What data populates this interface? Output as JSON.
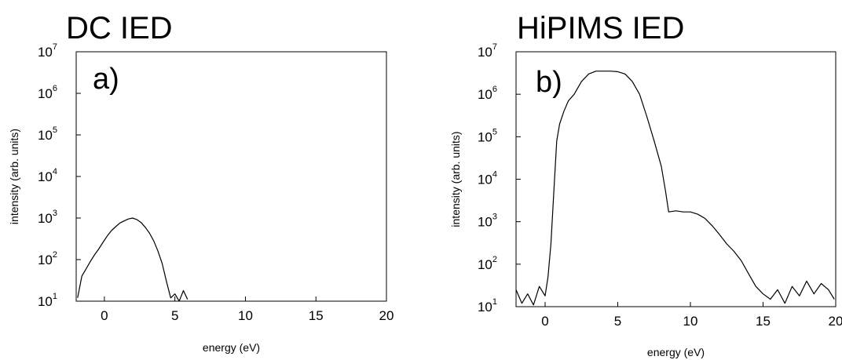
{
  "chart_data": [
    {
      "type": "line",
      "title": "DC IED",
      "panel_label": "a)",
      "xlabel": "energy (eV)",
      "ylabel": "intensity (arb. units)",
      "xlim": [
        -2,
        20
      ],
      "ylim": [
        10,
        10000000
      ],
      "yscale": "log",
      "x_ticks": [
        0,
        5,
        10,
        15,
        20
      ],
      "y_ticks": [
        {
          "base": "10",
          "exp": "1",
          "value": 10
        },
        {
          "base": "10",
          "exp": "2",
          "value": 100
        },
        {
          "base": "10",
          "exp": "3",
          "value": 1000
        },
        {
          "base": "10",
          "exp": "4",
          "value": 10000
        },
        {
          "base": "10",
          "exp": "5",
          "value": 100000
        },
        {
          "base": "10",
          "exp": "6",
          "value": 1000000
        },
        {
          "base": "10",
          "exp": "7",
          "value": 10000000
        }
      ],
      "series": [
        {
          "x": [
            -1.9,
            -1.6,
            -1.3,
            -1.0,
            -0.7,
            -0.4,
            -0.1,
            0.2,
            0.5,
            0.8,
            1.1,
            1.4,
            1.7,
            2.0,
            2.3,
            2.6,
            2.9,
            3.2,
            3.5,
            3.8,
            4.1,
            4.4,
            4.7,
            5.0,
            5.3,
            5.6,
            5.9
          ],
          "y": [
            12,
            40,
            60,
            90,
            130,
            180,
            260,
            370,
            500,
            620,
            760,
            850,
            950,
            1000,
            920,
            780,
            600,
            430,
            280,
            160,
            80,
            30,
            12,
            15,
            10,
            18,
            11
          ]
        }
      ]
    },
    {
      "type": "line",
      "title": "HiPIMS IED",
      "panel_label": "b)",
      "xlabel": "energy (eV)",
      "ylabel": "intensity (arb. units)",
      "xlim": [
        -2,
        20
      ],
      "ylim": [
        10,
        10000000
      ],
      "yscale": "log",
      "x_ticks": [
        0,
        5,
        10,
        15,
        20
      ],
      "y_ticks": [
        {
          "base": "10",
          "exp": "1",
          "value": 10
        },
        {
          "base": "10",
          "exp": "2",
          "value": 100
        },
        {
          "base": "10",
          "exp": "3",
          "value": 1000
        },
        {
          "base": "10",
          "exp": "4",
          "value": 10000
        },
        {
          "base": "10",
          "exp": "5",
          "value": 100000
        },
        {
          "base": "10",
          "exp": "6",
          "value": 1000000
        },
        {
          "base": "10",
          "exp": "7",
          "value": 10000000
        }
      ],
      "series": [
        {
          "x": [
            -2.0,
            -1.6,
            -1.2,
            -0.8,
            -0.4,
            0.0,
            0.2,
            0.4,
            0.6,
            0.8,
            1.0,
            1.3,
            1.6,
            2.0,
            2.5,
            3.0,
            3.5,
            4.0,
            4.5,
            5.0,
            5.5,
            6.0,
            6.5,
            7.0,
            7.5,
            8.0,
            8.3,
            8.5,
            9.0,
            9.5,
            10.0,
            10.5,
            11.0,
            11.5,
            12.0,
            12.5,
            13.0,
            13.5,
            14.0,
            14.5,
            15.0,
            15.5,
            16.0,
            16.5,
            17.0,
            17.5,
            18.0,
            18.5,
            19.0,
            19.5,
            19.9
          ],
          "y": [
            25,
            12,
            20,
            11,
            30,
            18,
            50,
            300,
            5000,
            80000,
            200000,
            400000,
            700000,
            1000000,
            2000000,
            3000000,
            3500000,
            3500000,
            3500000,
            3400000,
            3000000,
            2000000,
            1000000,
            300000,
            80000,
            20000,
            5000,
            1700,
            1800,
            1700,
            1700,
            1500,
            1200,
            800,
            500,
            300,
            200,
            120,
            60,
            30,
            20,
            15,
            25,
            12,
            30,
            18,
            40,
            20,
            35,
            25,
            15
          ]
        }
      ]
    }
  ]
}
